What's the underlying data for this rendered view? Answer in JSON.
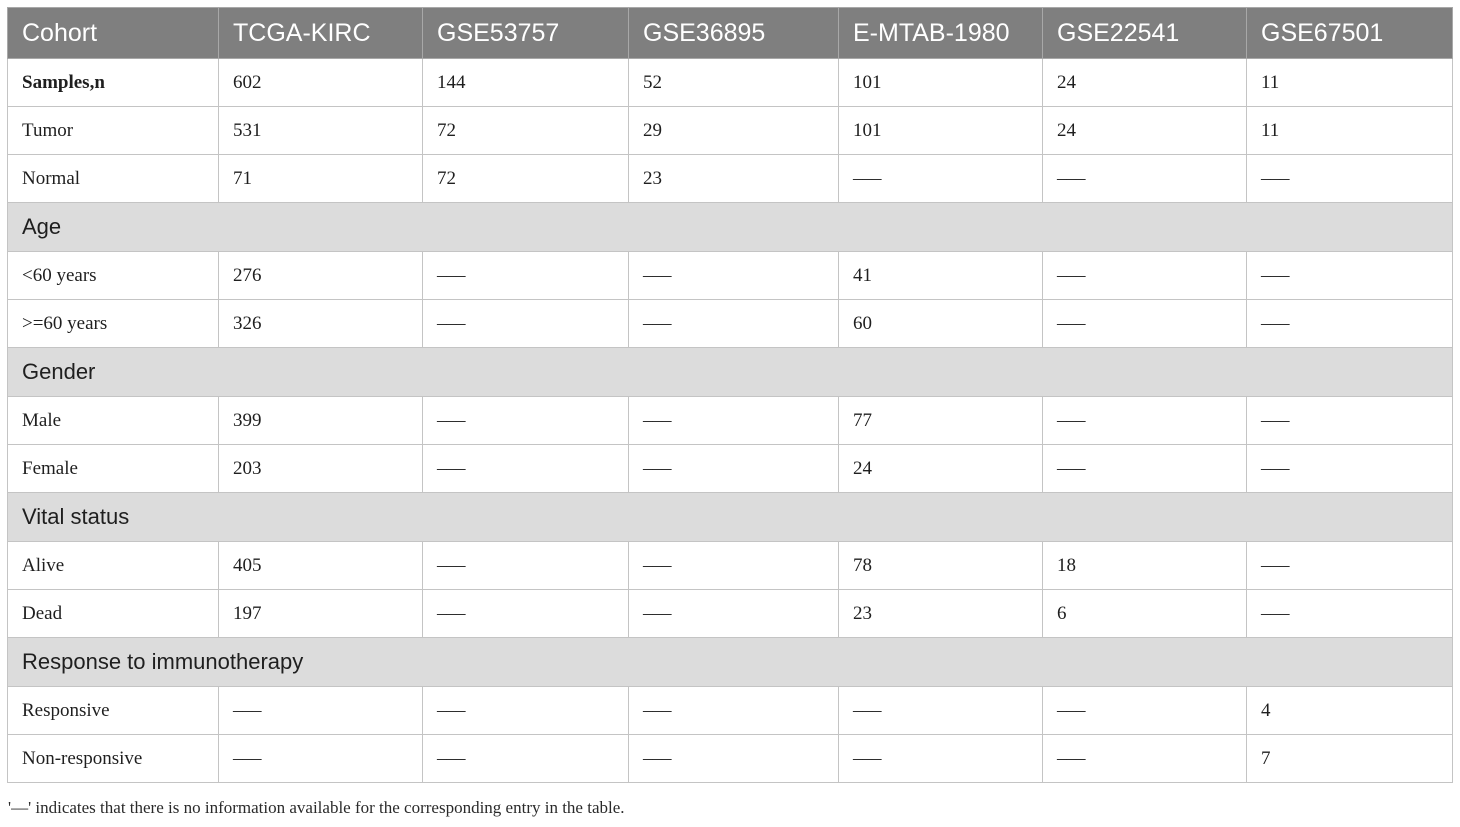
{
  "table": {
    "headers": [
      "Cohort",
      "TCGA-KIRC",
      "GSE53757",
      "GSE36895",
      "E-MTAB-1980",
      "GSE22541",
      "GSE67501"
    ],
    "rows": [
      {
        "type": "data",
        "bold": true,
        "cells": [
          "Samples,n",
          "602",
          "144",
          "52",
          "101",
          "24",
          "11"
        ]
      },
      {
        "type": "data",
        "cells": [
          "Tumor",
          "531",
          "72",
          "29",
          "101",
          "24",
          "11"
        ]
      },
      {
        "type": "data",
        "cells": [
          "Normal",
          "71",
          "72",
          "23",
          "–––",
          "–––",
          "–––"
        ]
      },
      {
        "type": "section",
        "label": "Age"
      },
      {
        "type": "data",
        "cells": [
          "<60 years",
          "276",
          "–––",
          "–––",
          "41",
          "–––",
          "–––"
        ]
      },
      {
        "type": "data",
        "cells": [
          ">=60 years",
          "326",
          "–––",
          "–––",
          "60",
          "–––",
          "–––"
        ]
      },
      {
        "type": "section",
        "label": "Gender"
      },
      {
        "type": "data",
        "cells": [
          "Male",
          "399",
          "–––",
          "–––",
          "77",
          "–––",
          "–––"
        ]
      },
      {
        "type": "data",
        "cells": [
          "Female",
          "203",
          "–––",
          "–––",
          "24",
          "–––",
          "–––"
        ]
      },
      {
        "type": "section",
        "label": "Vital status"
      },
      {
        "type": "data",
        "cells": [
          "Alive",
          "405",
          "–––",
          "–––",
          "78",
          "18",
          "–––"
        ]
      },
      {
        "type": "data",
        "cells": [
          "Dead",
          "197",
          "–––",
          "–––",
          "23",
          "6",
          "–––"
        ]
      },
      {
        "type": "section",
        "label": "Response to immunotherapy"
      },
      {
        "type": "data",
        "cells": [
          "Responsive",
          "–––",
          "–––",
          "–––",
          "–––",
          "–––",
          "4"
        ]
      },
      {
        "type": "data",
        "cells": [
          "Non-responsive",
          "–––",
          "–––",
          "–––",
          "–––",
          "–––",
          "7"
        ]
      }
    ]
  },
  "footnote": "'—' indicates that there is no information available for the corresponding entry in the table."
}
